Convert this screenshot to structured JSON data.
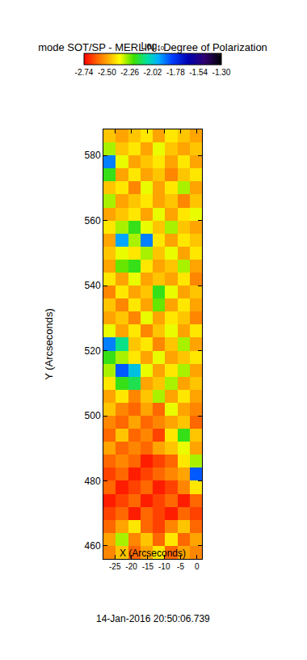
{
  "chart_data": {
    "type": "heatmap",
    "title": "mode SOT/SP - MERLIN : Degree of Polarization",
    "x_label": "X (Arcseconds)",
    "y_label": "Y (Arcseconds)",
    "date": "14-Jan-2016 20:50:06.739",
    "colorbar_title": "Log₁₀",
    "log": true,
    "zlim": [
      -2.74,
      -1.3
    ],
    "zticks": [
      -2.74,
      {
        "value": -2.5,
        "label": "-2.50"
      },
      -2.26,
      -2.02,
      -1.78,
      -1.54,
      {
        "value": -1.3,
        "label": "-1.30"
      }
    ],
    "xlim": [
      -28.5,
      1.5
    ],
    "ylim": [
      456,
      588
    ],
    "xticks": [
      -25,
      -20,
      -15,
      -10,
      -5,
      0
    ],
    "yticks": [
      460,
      480,
      500,
      520,
      540,
      560,
      580
    ],
    "x": [
      -26.625,
      -22.875,
      -19.125,
      -15.375,
      -11.625,
      -7.875,
      -4.125,
      -0.375
    ],
    "y": [
      458,
      462,
      466,
      470,
      474,
      478,
      482,
      486,
      490,
      494,
      498,
      502,
      506,
      510,
      514,
      518,
      522,
      526,
      530,
      534,
      538,
      542,
      546,
      550,
      554,
      558,
      562,
      566,
      570,
      574,
      578,
      582,
      586
    ],
    "z": [
      [
        -2.55,
        -2.45,
        -2.6,
        -2.5,
        -2.4,
        -2.6,
        -2.5,
        -2.55
      ],
      [
        -2.5,
        -2.3,
        -2.55,
        -2.45,
        -2.6,
        -2.4,
        -2.6,
        -2.5
      ],
      [
        -2.6,
        -2.5,
        -2.4,
        -2.6,
        -2.65,
        -2.55,
        -2.45,
        -2.6
      ],
      [
        -2.65,
        -2.6,
        -2.7,
        -2.6,
        -2.65,
        -2.7,
        -2.6,
        -2.65
      ],
      [
        -2.7,
        -2.65,
        -2.6,
        -2.7,
        -2.65,
        -2.6,
        -2.7,
        -2.6
      ],
      [
        -2.6,
        -2.7,
        -2.65,
        -2.6,
        -2.7,
        -2.65,
        -2.55,
        -2.4
      ],
      [
        -2.65,
        -2.6,
        -2.7,
        -2.65,
        -2.6,
        -2.55,
        -2.5,
        -1.85
      ],
      [
        -2.6,
        -2.55,
        -2.6,
        -2.7,
        -2.65,
        -2.6,
        -2.4,
        -2.3
      ],
      [
        -2.5,
        -2.6,
        -2.55,
        -2.6,
        -2.5,
        -2.45,
        -2.35,
        -2.5
      ],
      [
        -2.6,
        -2.45,
        -2.6,
        -2.55,
        -2.65,
        -2.4,
        -2.2,
        -2.45
      ],
      [
        -2.55,
        -2.6,
        -2.5,
        -2.6,
        -2.55,
        -2.5,
        -2.45,
        -2.6
      ],
      [
        -2.45,
        -2.55,
        -2.6,
        -2.5,
        -2.6,
        -2.35,
        -2.5,
        -2.55
      ],
      [
        -2.5,
        -2.4,
        -2.55,
        -2.45,
        -2.3,
        -2.5,
        -2.4,
        -2.5
      ],
      [
        -2.4,
        -2.2,
        -2.15,
        -2.5,
        -2.45,
        -2.3,
        -2.5,
        -2.45
      ],
      [
        -2.3,
        -1.85,
        -2.0,
        -2.35,
        -2.5,
        -2.4,
        -2.3,
        -2.5
      ],
      [
        -2.2,
        -2.3,
        -2.4,
        -2.5,
        -2.35,
        -2.5,
        -2.45,
        -2.4
      ],
      [
        -1.9,
        -2.1,
        -2.45,
        -2.4,
        -2.55,
        -2.45,
        -2.3,
        -2.5
      ],
      [
        -2.35,
        -2.5,
        -2.4,
        -2.55,
        -2.45,
        -2.35,
        -2.5,
        -2.4
      ],
      [
        -2.5,
        -2.45,
        -2.55,
        -2.35,
        -2.5,
        -2.4,
        -2.45,
        -2.55
      ],
      [
        -2.45,
        -2.55,
        -2.4,
        -2.5,
        -2.25,
        -2.5,
        -2.4,
        -2.5
      ],
      [
        -2.55,
        -2.4,
        -2.5,
        -2.45,
        -2.2,
        -2.35,
        -2.5,
        -2.45
      ],
      [
        -2.4,
        -2.5,
        -2.35,
        -2.5,
        -2.45,
        -2.5,
        -2.4,
        -2.55
      ],
      [
        -2.5,
        -2.25,
        -2.2,
        -2.4,
        -2.5,
        -2.45,
        -2.3,
        -2.5
      ],
      [
        -2.45,
        -2.35,
        -2.4,
        -2.3,
        -2.45,
        -2.35,
        -2.5,
        -2.4
      ],
      [
        -2.5,
        -1.95,
        -2.3,
        -1.9,
        -2.4,
        -2.5,
        -2.4,
        -2.45
      ],
      [
        -2.4,
        -2.3,
        -2.2,
        -2.35,
        -2.45,
        -2.3,
        -2.45,
        -2.5
      ],
      [
        -2.5,
        -2.45,
        -2.4,
        -2.5,
        -2.35,
        -2.5,
        -2.4,
        -2.35
      ],
      [
        -2.3,
        -2.5,
        -2.45,
        -2.4,
        -2.5,
        -2.45,
        -2.55,
        -2.45
      ],
      [
        -2.45,
        -2.4,
        -2.55,
        -2.35,
        -2.5,
        -2.4,
        -2.3,
        -2.5
      ],
      [
        -2.2,
        -2.5,
        -2.4,
        -2.5,
        -2.45,
        -2.55,
        -2.45,
        -2.4
      ],
      [
        -1.9,
        -2.35,
        -2.5,
        -2.45,
        -2.4,
        -2.5,
        -2.4,
        -2.5
      ],
      [
        -2.3,
        -2.45,
        -2.4,
        -2.5,
        -2.35,
        -2.45,
        -2.5,
        -2.45
      ],
      [
        -2.45,
        -2.5,
        -2.45,
        -2.4,
        -2.5,
        -2.4,
        -2.45,
        -2.5
      ]
    ]
  }
}
